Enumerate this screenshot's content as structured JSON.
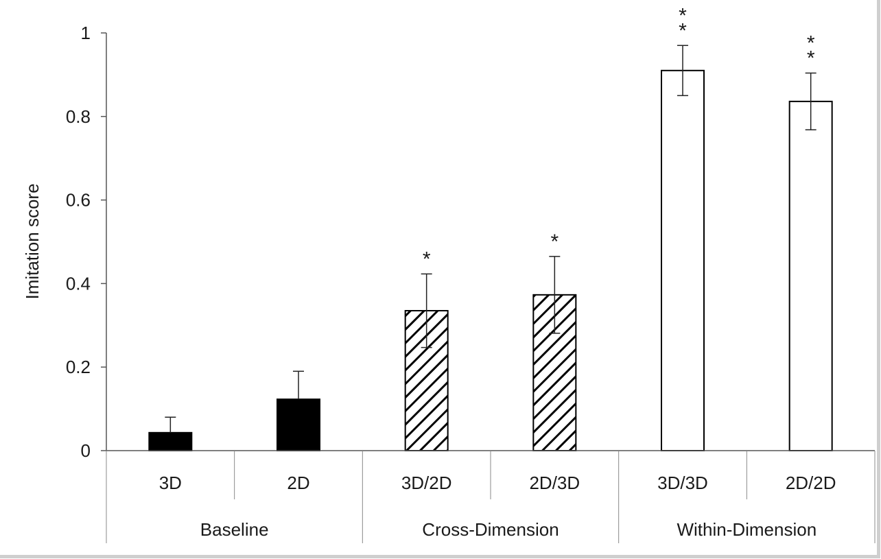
{
  "chart_data": {
    "type": "bar",
    "ylabel": "Imitation score",
    "ylim": [
      0,
      1
    ],
    "yticks": [
      0,
      0.2,
      0.4,
      0.6,
      0.8,
      1
    ],
    "ytick_labels": [
      "0",
      "0.2",
      "0.4",
      "0.6",
      "0.8",
      "1"
    ],
    "categories": [
      "3D",
      "2D",
      "3D/2D",
      "2D/3D",
      "3D/3D",
      "2D/2D"
    ],
    "groups": [
      {
        "label": "Baseline",
        "categories": [
          "3D",
          "2D"
        ]
      },
      {
        "label": "Cross-Dimension",
        "categories": [
          "3D/2D",
          "2D/3D"
        ]
      },
      {
        "label": "Within-Dimension",
        "categories": [
          "3D/3D",
          "2D/2D"
        ]
      }
    ],
    "values": [
      0.043,
      0.123,
      0.335,
      0.373,
      0.91,
      0.836
    ],
    "errors": [
      0.037,
      0.067,
      0.088,
      0.092,
      0.06,
      0.068
    ],
    "error_bars_lower": [
      false,
      false,
      true,
      true,
      true,
      true
    ],
    "significance": [
      "",
      "",
      "*",
      "*",
      "**",
      "**"
    ],
    "fills": [
      "solid",
      "solid",
      "hatched",
      "hatched",
      "open",
      "open"
    ],
    "grid": false,
    "legend": "none"
  }
}
